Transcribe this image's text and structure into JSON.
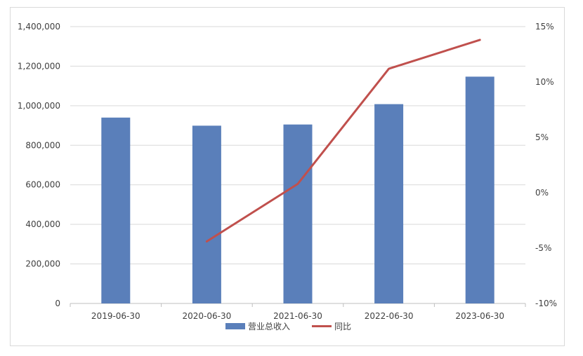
{
  "chart_data": {
    "type": "bar",
    "categories": [
      "2019-06-30",
      "2020-06-30",
      "2021-06-30",
      "2022-06-30",
      "2023-06-30"
    ],
    "series": [
      {
        "name": "营业总收入",
        "type": "bar",
        "axis": "left",
        "color": "#5a7fba",
        "values": [
          940000,
          899000,
          905000,
          1008000,
          1147000
        ]
      },
      {
        "name": "同比",
        "type": "line",
        "axis": "right",
        "color": "#c0504d",
        "values": [
          null,
          -4.4,
          0.8,
          11.2,
          13.8
        ]
      }
    ],
    "y_left": {
      "lim": [
        0,
        1400000
      ],
      "ticks": [
        0,
        200000,
        400000,
        600000,
        800000,
        1000000,
        1200000,
        1400000
      ],
      "tick_labels": [
        "0",
        "200,000",
        "400,000",
        "600,000",
        "800,000",
        "1,000,000",
        "1,200,000",
        "1,400,000"
      ]
    },
    "y_right": {
      "lim": [
        -10,
        15
      ],
      "ticks": [
        -10,
        -5,
        0,
        5,
        10,
        15
      ],
      "tick_labels": [
        "-10%",
        "-5%",
        "0%",
        "5%",
        "10%",
        "15%"
      ]
    },
    "grid": true,
    "legend_position": "bottom"
  }
}
